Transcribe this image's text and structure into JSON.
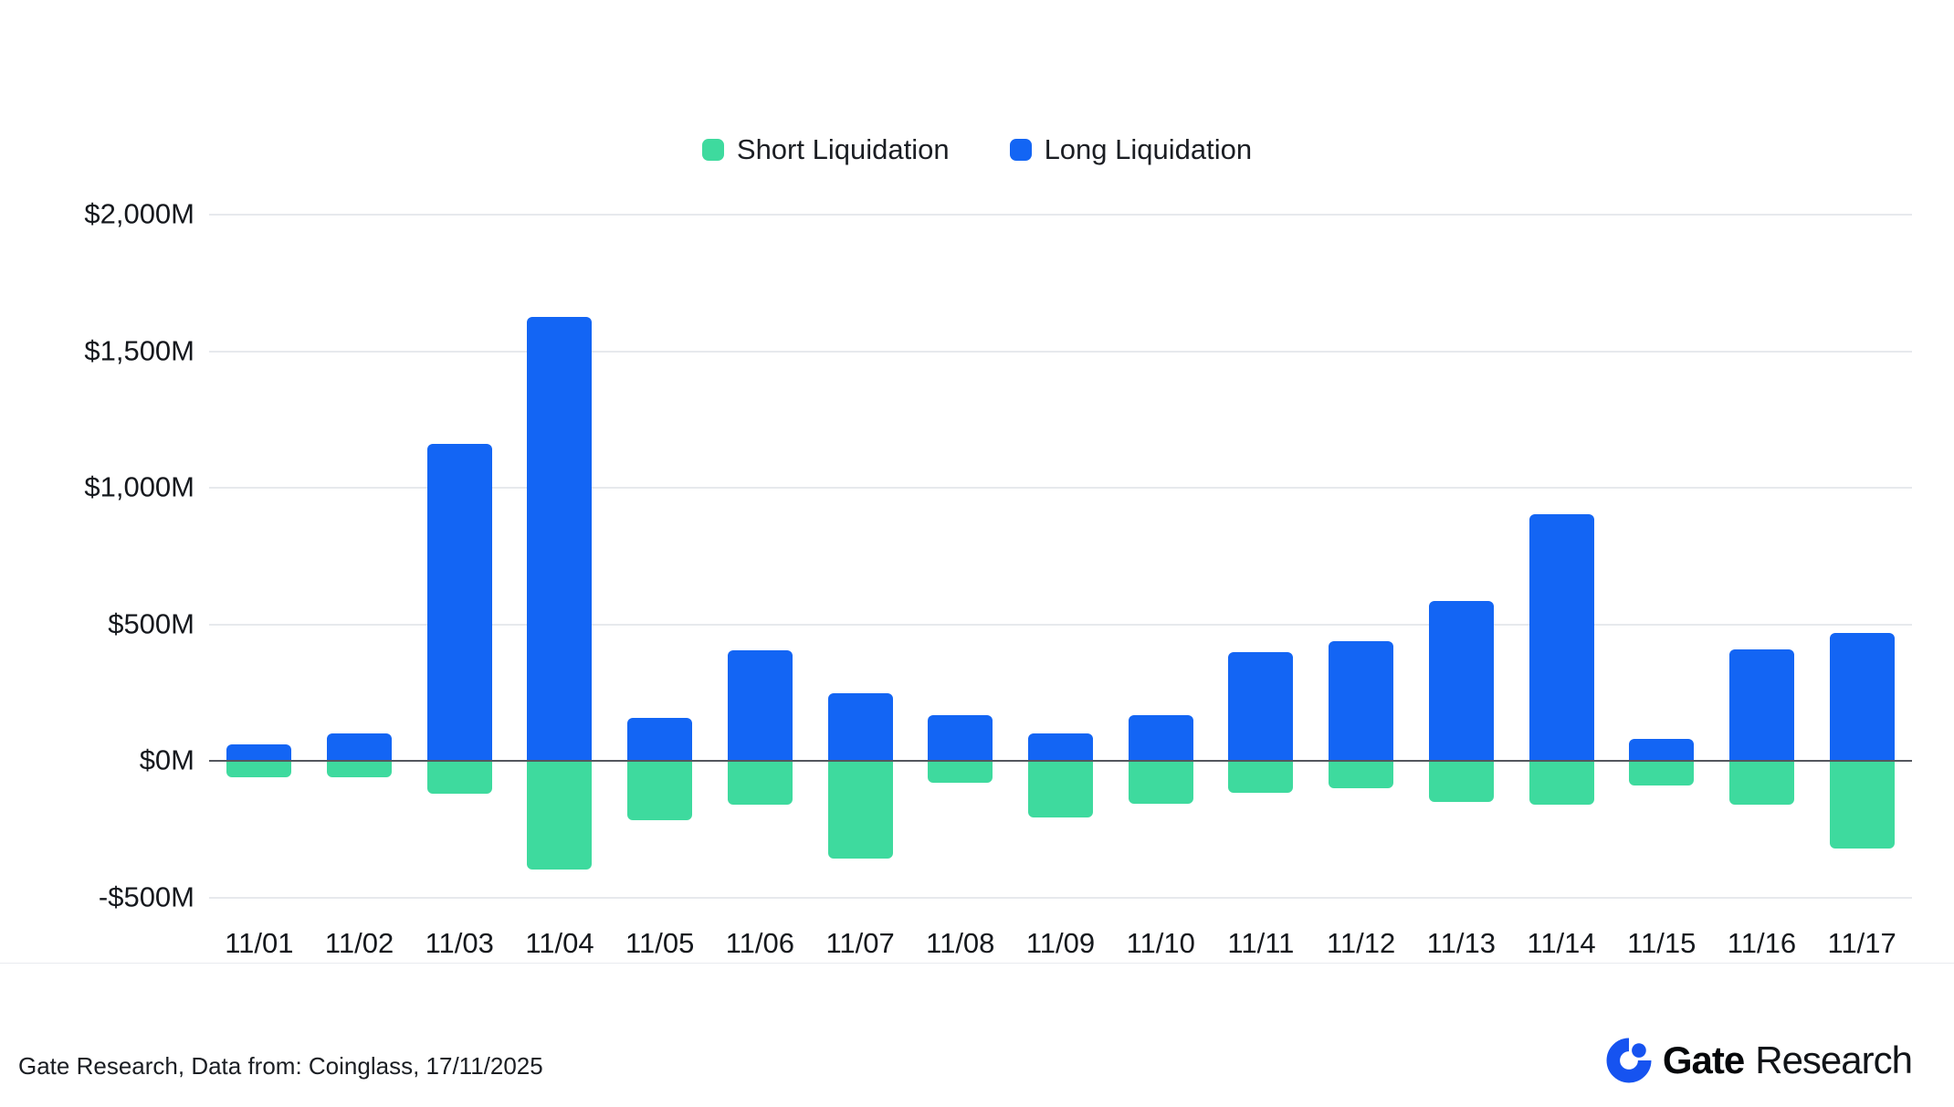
{
  "legend": {
    "note": "legend labels bound from chart_data.series names"
  },
  "chart_data": {
    "type": "bar",
    "title": "",
    "xlabel": "",
    "ylabel": "",
    "categories": [
      "11/01",
      "11/02",
      "11/03",
      "11/04",
      "11/05",
      "11/06",
      "11/07",
      "11/08",
      "11/09",
      "11/10",
      "11/11",
      "11/12",
      "11/13",
      "11/14",
      "11/15",
      "11/16",
      "11/17"
    ],
    "series": [
      {
        "name": "Short Liquidation",
        "color": "#3EDA9E",
        "values": [
          -60,
          -60,
          -120,
          -395,
          -215,
          -160,
          -355,
          -80,
          -205,
          -155,
          -115,
          -100,
          -150,
          -160,
          -90,
          -160,
          -320
        ]
      },
      {
        "name": "Long Liquidation",
        "color": "#1365F4",
        "values": [
          60,
          100,
          1160,
          1625,
          160,
          405,
          250,
          170,
          100,
          170,
          400,
          440,
          585,
          905,
          80,
          410,
          470
        ]
      }
    ],
    "ylim": [
      -500,
      2000
    ],
    "yticks": [
      2000,
      1500,
      1000,
      500,
      0,
      -500
    ],
    "ytick_labels": [
      "$2,000M",
      "$1,500M",
      "$1,000M",
      "$500M",
      "$0M",
      "-$500M"
    ],
    "grid": true,
    "grid_color": "#E7E9ED",
    "zero_line_color": "#54575E",
    "legend_position": "top"
  },
  "footer": {
    "source": "Gate Research, Data from: Coinglass, 17/11/2025",
    "brand_bold": "Gate",
    "brand_regular": "Research",
    "brand_color": "#1653F0"
  }
}
